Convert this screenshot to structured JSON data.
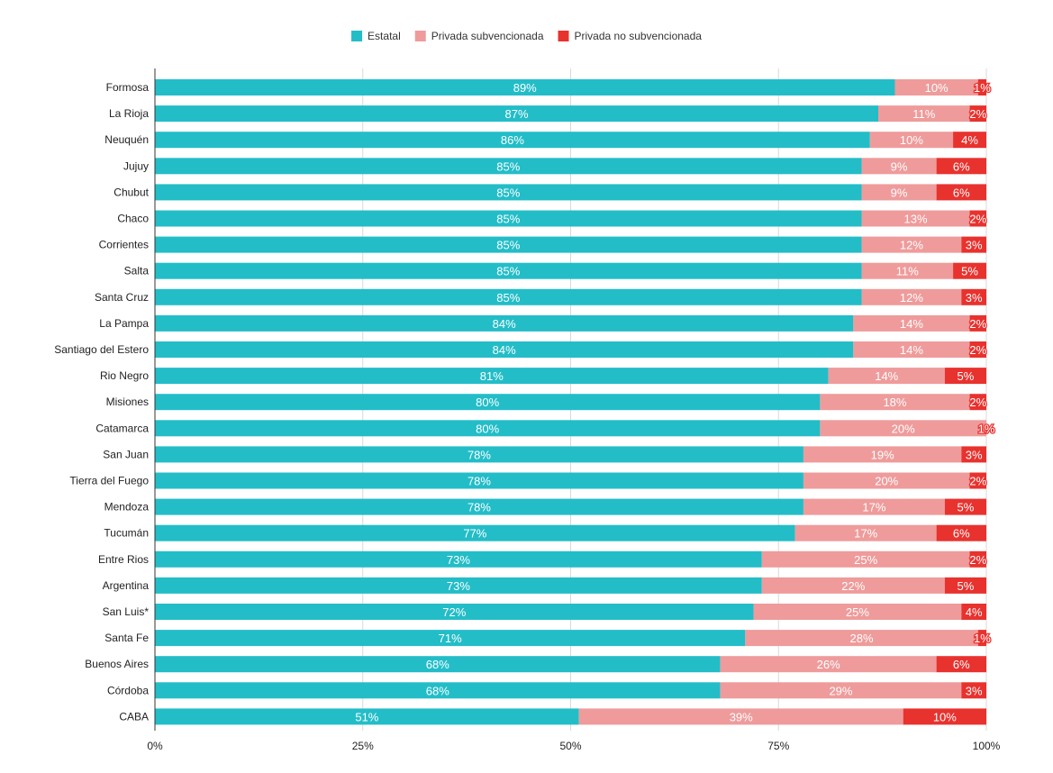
{
  "chart_data": {
    "type": "bar",
    "orientation": "horizontal",
    "stacked": true,
    "title": "",
    "xlabel": "",
    "ylabel": "",
    "xlim": [
      0,
      100
    ],
    "x_tick_values": [
      0,
      25,
      50,
      75,
      100
    ],
    "x_tick_labels": [
      "0%",
      "25%",
      "50%",
      "75%",
      "100%"
    ],
    "grid": true,
    "legend_position": "top-center",
    "categories": [
      "Formosa",
      "La Rioja",
      "Neuquén",
      "Jujuy",
      "Chubut",
      "Chaco",
      "Corrientes",
      "Salta",
      "Santa Cruz",
      "La Pampa",
      "Santiago del Estero",
      "Rio Negro",
      "Misiones",
      "Catamarca",
      "San Juan",
      "Tierra del Fuego",
      "Mendoza",
      "Tucumán",
      "Entre Rios",
      "Argentina",
      "San Luis*",
      "Santa Fe",
      "Buenos Aires",
      "Córdoba",
      "CABA"
    ],
    "series": [
      {
        "name": "Estatal",
        "color": "#23bdc8",
        "values": [
          89,
          87,
          86,
          85,
          85,
          85,
          85,
          85,
          85,
          84,
          84,
          81,
          80,
          80,
          78,
          78,
          78,
          77,
          73,
          73,
          72,
          71,
          68,
          68,
          51
        ],
        "labels": [
          "89%",
          "87%",
          "86%",
          "85%",
          "85%",
          "85%",
          "85%",
          "85%",
          "85%",
          "84%",
          "84%",
          "81%",
          "80%",
          "80%",
          "78%",
          "78%",
          "78%",
          "77%",
          "73%",
          "73%",
          "72%",
          "71%",
          "68%",
          "68%",
          "51%"
        ]
      },
      {
        "name": "Privada subvencionada",
        "color": "#ef9b9b",
        "values": [
          10,
          11,
          10,
          9,
          9,
          13,
          12,
          11,
          12,
          14,
          14,
          14,
          18,
          20,
          19,
          20,
          17,
          17,
          25,
          22,
          25,
          28,
          26,
          29,
          39
        ],
        "labels": [
          "10%",
          "11%",
          "10%",
          "9%",
          "9%",
          "13%",
          "12%",
          "11%",
          "12%",
          "14%",
          "14%",
          "14%",
          "18%",
          "20%",
          "19%",
          "20%",
          "17%",
          "17%",
          "25%",
          "22%",
          "25%",
          "28%",
          "26%",
          "29%",
          "39%"
        ]
      },
      {
        "name": "Privada no subvencionada",
        "color": "#e8322e",
        "values": [
          1,
          2,
          4,
          6,
          6,
          2,
          3,
          5,
          3,
          2,
          2,
          5,
          2,
          1,
          3,
          2,
          5,
          6,
          2,
          5,
          4,
          1,
          6,
          3,
          10
        ],
        "labels": [
          "1%",
          "2%",
          "4%",
          "6%",
          "6%",
          "2%",
          "3%",
          "5%",
          "3%",
          "2%",
          "2%",
          "5%",
          "2%",
          "1%",
          "3%",
          "2%",
          "5%",
          "6%",
          "2%",
          "5%",
          "4%",
          "1%",
          "6%",
          "3%",
          "10%"
        ]
      }
    ]
  }
}
